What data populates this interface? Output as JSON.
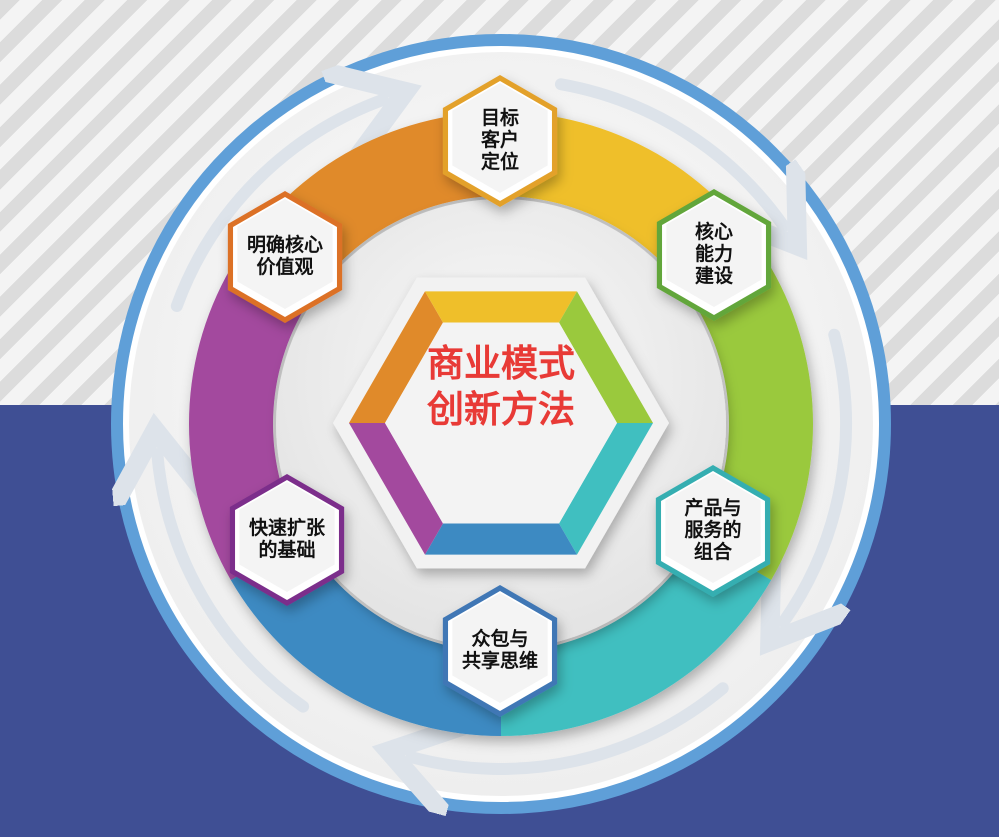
{
  "center": {
    "line1": "商业模式",
    "line2": "创新方法"
  },
  "nodes": [
    {
      "id": "target",
      "label": "目标\n客户\n定位",
      "color": "#e3a12b"
    },
    {
      "id": "core",
      "label": "核心\n能力\n建设",
      "color": "#62a63a"
    },
    {
      "id": "product",
      "label": "产品与\n服务的\n组合",
      "color": "#35aeb1"
    },
    {
      "id": "crowd",
      "label": "众包与\n共享思维",
      "color": "#3f77b5"
    },
    {
      "id": "rapid",
      "label": "快速扩张\n的基础",
      "color": "#7b2f8b"
    },
    {
      "id": "value",
      "label": "明确核心\n价值观",
      "color": "#dc7127"
    }
  ],
  "colors": {
    "ring": [
      "#e08a2a",
      "#efbf2a",
      "#9ac93c",
      "#3fbfc0",
      "#3d8ac2",
      "#a3499e"
    ],
    "outer_ring": "#5f9fd8",
    "background_bottom": "#3f4f94",
    "center_text": "#e83a36"
  }
}
